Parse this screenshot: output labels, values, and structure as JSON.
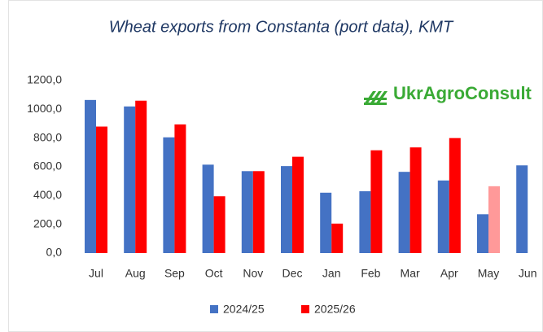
{
  "chart_data": {
    "type": "bar",
    "title": "Wheat exports from Constanta (port data), KMT",
    "logo": "UkrAgroConsult",
    "categories": [
      "Jul",
      "Aug",
      "Sep",
      "Oct",
      "Nov",
      "Dec",
      "Jan",
      "Feb",
      "Mar",
      "Apr",
      "May",
      "Jun"
    ],
    "series": [
      {
        "name": "2024/25",
        "color": "#4472c4",
        "values": [
          1065,
          1020,
          805,
          615,
          570,
          605,
          420,
          430,
          565,
          505,
          270,
          610
        ]
      },
      {
        "name": "2025/26",
        "color": "#ff0000",
        "values": [
          880,
          1060,
          895,
          395,
          570,
          670,
          205,
          715,
          735,
          800,
          465,
          null
        ],
        "colors": [
          "#ff0000",
          "#ff0000",
          "#ff0000",
          "#ff0000",
          "#ff0000",
          "#ff0000",
          "#ff0000",
          "#ff0000",
          "#ff0000",
          "#ff0000",
          "#ff9999",
          null
        ]
      }
    ],
    "ylim": [
      0,
      1200
    ],
    "yticks": [
      {
        "value": 0,
        "label": "0,0"
      },
      {
        "value": 200,
        "label": "200,0"
      },
      {
        "value": 400,
        "label": "400,0"
      },
      {
        "value": 600,
        "label": "600,0"
      },
      {
        "value": 800,
        "label": "800,0"
      },
      {
        "value": 1000,
        "label": "1000,0"
      },
      {
        "value": 1200,
        "label": "1200,0"
      }
    ],
    "grid": false,
    "legend": "bottom"
  }
}
